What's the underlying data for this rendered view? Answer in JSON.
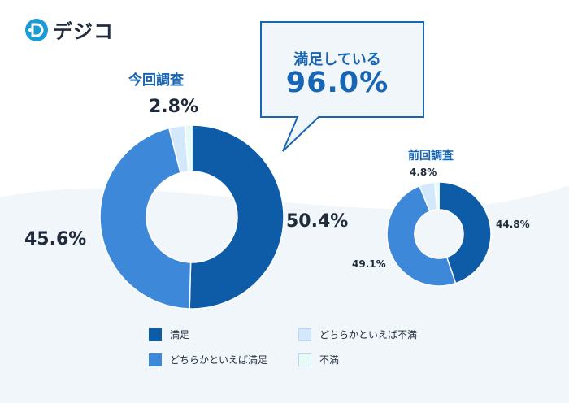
{
  "brand": {
    "name": "デジコ",
    "icon": "brand-logo-icon"
  },
  "callout": {
    "label": "満足している",
    "value": "96.0%"
  },
  "colors": {
    "satisfied": "#0e5ca8",
    "somewhat_satisfied": "#3d88d9",
    "somewhat_dissatisfied": "#d3e8fb",
    "dissatisfied": "#e6fbf6",
    "accent": "#1766b6",
    "text": "#1f2a3a",
    "band": "#f1f6fa"
  },
  "chart_data": [
    {
      "type": "pie",
      "donut": true,
      "title": "今回調査",
      "categories": [
        "満足",
        "どちらかといえば満足",
        "どちらかといえば不満",
        "不満"
      ],
      "values": [
        50.4,
        45.6,
        2.8,
        1.2
      ],
      "labels": [
        "50.4%",
        "45.6%",
        "2.8%"
      ]
    },
    {
      "type": "pie",
      "donut": true,
      "title": "前回調査",
      "categories": [
        "満足",
        "どちらかといえば満足",
        "どちらかといえば不満",
        "不満"
      ],
      "values": [
        44.8,
        49.1,
        4.8,
        1.3
      ],
      "labels": [
        "44.8%",
        "49.1%",
        "4.8%"
      ]
    }
  ],
  "legend": {
    "items": [
      {
        "label": "満足",
        "color": "#0e5ca8"
      },
      {
        "label": "どちらかといえば満足",
        "color": "#3d88d9"
      },
      {
        "label": "どちらかといえば不満",
        "color": "#d3e8fb"
      },
      {
        "label": "不満",
        "color": "#e6fbf6"
      }
    ]
  }
}
